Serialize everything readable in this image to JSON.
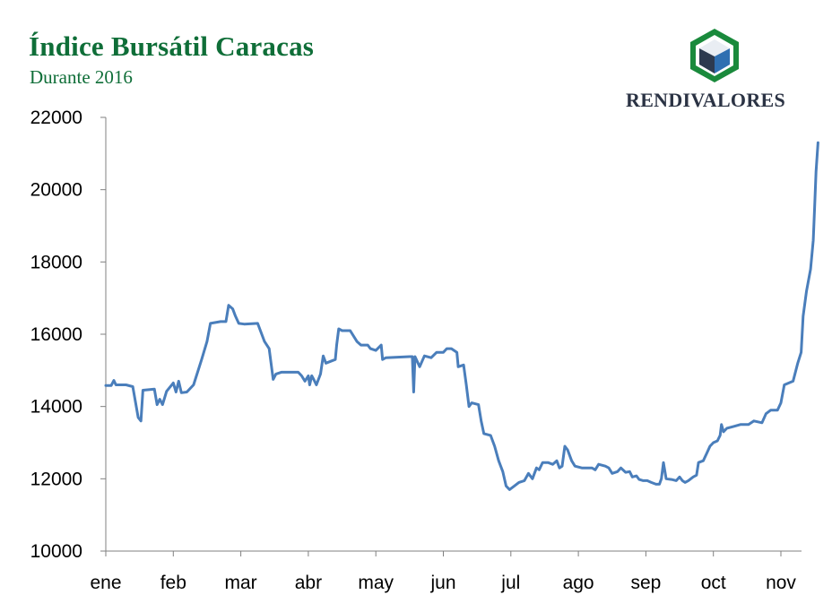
{
  "header": {
    "title": "Índice Bursátil Caracas",
    "subtitle": "Durante 2016",
    "brand": "RENDIVALORES"
  },
  "colors": {
    "title": "#0f6e38",
    "brand_text": "#2b3344",
    "line": "#4a7ebb",
    "axis": "#808080",
    "logo_green": "#1a8a3c",
    "logo_blue": "#2f6fb1"
  },
  "chart_data": {
    "type": "line",
    "title": "Índice Bursátil Caracas",
    "subtitle": "Durante 2016",
    "xlabel": "",
    "ylabel": "",
    "categories": [
      "ene",
      "feb",
      "mar",
      "abr",
      "may",
      "jun",
      "jul",
      "ago",
      "sep",
      "oct",
      "nov"
    ],
    "y_ticks": [
      10000,
      12000,
      14000,
      16000,
      18000,
      20000,
      22000
    ],
    "ylim": [
      10000,
      22000
    ],
    "grid": false,
    "legend": "none",
    "series": [
      {
        "points": [
          [
            0.0,
            14580
          ],
          [
            0.08,
            14580
          ],
          [
            0.12,
            14720
          ],
          [
            0.15,
            14600
          ],
          [
            0.3,
            14600
          ],
          [
            0.4,
            14550
          ],
          [
            0.48,
            13700
          ],
          [
            0.52,
            13600
          ],
          [
            0.55,
            14450
          ],
          [
            0.72,
            14480
          ],
          [
            0.76,
            14050
          ],
          [
            0.8,
            14200
          ],
          [
            0.84,
            14050
          ],
          [
            0.9,
            14420
          ],
          [
            1.0,
            14650
          ],
          [
            1.04,
            14400
          ],
          [
            1.08,
            14700
          ],
          [
            1.12,
            14380
          ],
          [
            1.2,
            14400
          ],
          [
            1.3,
            14600
          ],
          [
            1.42,
            15300
          ],
          [
            1.5,
            15800
          ],
          [
            1.55,
            16300
          ],
          [
            1.7,
            16350
          ],
          [
            1.78,
            16350
          ],
          [
            1.82,
            16800
          ],
          [
            1.88,
            16700
          ],
          [
            1.92,
            16500
          ],
          [
            1.97,
            16300
          ],
          [
            2.05,
            16280
          ],
          [
            2.25,
            16300
          ],
          [
            2.35,
            15800
          ],
          [
            2.42,
            15600
          ],
          [
            2.48,
            14750
          ],
          [
            2.52,
            14900
          ],
          [
            2.6,
            14950
          ],
          [
            2.85,
            14950
          ],
          [
            2.9,
            14850
          ],
          [
            2.95,
            14700
          ],
          [
            3.0,
            14850
          ],
          [
            3.02,
            14600
          ],
          [
            3.05,
            14850
          ],
          [
            3.08,
            14750
          ],
          [
            3.12,
            14600
          ],
          [
            3.18,
            14900
          ],
          [
            3.22,
            15400
          ],
          [
            3.26,
            15200
          ],
          [
            3.4,
            15300
          ],
          [
            3.42,
            15700
          ],
          [
            3.45,
            16150
          ],
          [
            3.5,
            16100
          ],
          [
            3.62,
            16100
          ],
          [
            3.72,
            15800
          ],
          [
            3.78,
            15700
          ],
          [
            3.88,
            15700
          ],
          [
            3.92,
            15600
          ],
          [
            4.0,
            15550
          ],
          [
            4.08,
            15700
          ],
          [
            4.1,
            15300
          ],
          [
            4.15,
            15350
          ],
          [
            4.5,
            15380
          ],
          [
            4.54,
            15380
          ],
          [
            4.56,
            14400
          ],
          [
            4.58,
            15380
          ],
          [
            4.65,
            15100
          ],
          [
            4.72,
            15400
          ],
          [
            4.82,
            15350
          ],
          [
            4.9,
            15500
          ],
          [
            5.0,
            15500
          ],
          [
            5.05,
            15600
          ],
          [
            5.12,
            15600
          ],
          [
            5.2,
            15500
          ],
          [
            5.22,
            15100
          ],
          [
            5.3,
            15150
          ],
          [
            5.34,
            14600
          ],
          [
            5.38,
            14000
          ],
          [
            5.42,
            14100
          ],
          [
            5.52,
            14050
          ],
          [
            5.56,
            13600
          ],
          [
            5.6,
            13250
          ],
          [
            5.7,
            13200
          ],
          [
            5.76,
            12900
          ],
          [
            5.82,
            12500
          ],
          [
            5.88,
            12200
          ],
          [
            5.93,
            11800
          ],
          [
            5.98,
            11700
          ],
          [
            6.05,
            11800
          ],
          [
            6.12,
            11900
          ],
          [
            6.2,
            11950
          ],
          [
            6.26,
            12150
          ],
          [
            6.32,
            12000
          ],
          [
            6.38,
            12300
          ],
          [
            6.42,
            12250
          ],
          [
            6.47,
            12450
          ],
          [
            6.55,
            12450
          ],
          [
            6.62,
            12400
          ],
          [
            6.68,
            12500
          ],
          [
            6.72,
            12300
          ],
          [
            6.76,
            12350
          ],
          [
            6.8,
            12900
          ],
          [
            6.84,
            12800
          ],
          [
            6.9,
            12500
          ],
          [
            6.95,
            12350
          ],
          [
            7.05,
            12300
          ],
          [
            7.2,
            12300
          ],
          [
            7.25,
            12250
          ],
          [
            7.3,
            12400
          ],
          [
            7.4,
            12350
          ],
          [
            7.45,
            12300
          ],
          [
            7.5,
            12150
          ],
          [
            7.58,
            12200
          ],
          [
            7.63,
            12300
          ],
          [
            7.7,
            12180
          ],
          [
            7.76,
            12200
          ],
          [
            7.8,
            12050
          ],
          [
            7.86,
            12080
          ],
          [
            7.9,
            11980
          ],
          [
            7.96,
            11950
          ],
          [
            8.02,
            11950
          ],
          [
            8.08,
            11900
          ],
          [
            8.15,
            11850
          ],
          [
            8.2,
            11850
          ],
          [
            8.23,
            12000
          ],
          [
            8.26,
            12450
          ],
          [
            8.3,
            12000
          ],
          [
            8.38,
            11980
          ],
          [
            8.45,
            11950
          ],
          [
            8.5,
            12050
          ],
          [
            8.54,
            11950
          ],
          [
            8.58,
            11900
          ],
          [
            8.63,
            11950
          ],
          [
            8.7,
            12050
          ],
          [
            8.75,
            12100
          ],
          [
            8.78,
            12450
          ],
          [
            8.85,
            12500
          ],
          [
            8.9,
            12700
          ],
          [
            8.95,
            12900
          ],
          [
            9.0,
            13000
          ],
          [
            9.06,
            13050
          ],
          [
            9.1,
            13200
          ],
          [
            9.12,
            13500
          ],
          [
            9.15,
            13300
          ],
          [
            9.2,
            13400
          ],
          [
            9.3,
            13450
          ],
          [
            9.4,
            13500
          ],
          [
            9.52,
            13500
          ],
          [
            9.6,
            13600
          ],
          [
            9.72,
            13550
          ],
          [
            9.78,
            13800
          ],
          [
            9.85,
            13900
          ],
          [
            9.95,
            13900
          ],
          [
            10.0,
            14100
          ],
          [
            10.05,
            14600
          ],
          [
            10.18,
            14700
          ],
          [
            10.25,
            15200
          ],
          [
            10.3,
            15500
          ],
          [
            10.33,
            16500
          ],
          [
            10.38,
            17200
          ],
          [
            10.44,
            17800
          ],
          [
            10.48,
            18600
          ],
          [
            10.5,
            19500
          ],
          [
            10.52,
            20500
          ],
          [
            10.55,
            21300
          ]
        ]
      }
    ]
  }
}
